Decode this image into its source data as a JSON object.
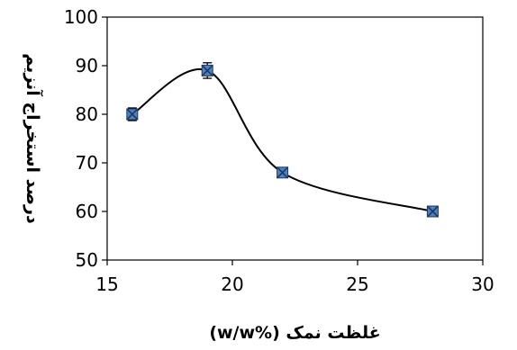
{
  "chart_data": {
    "type": "scatter",
    "title": "",
    "xlabel": "غلظت نمک (%w/w)",
    "ylabel": "درصد استخراج آنزیم",
    "xlim": [
      15,
      30
    ],
    "ylim": [
      50,
      100
    ],
    "x_ticks": [
      15,
      20,
      25,
      30
    ],
    "y_ticks": [
      50,
      60,
      70,
      80,
      90,
      100
    ],
    "grid": false,
    "legend": "none",
    "series": [
      {
        "x": [
          16,
          19,
          22,
          28
        ],
        "y": [
          80,
          89,
          68,
          60
        ],
        "error": [
          1.3,
          1.6,
          0.9,
          0.7
        ],
        "marker_color": "#4f81bd",
        "marker_edge_color": "#1f3864",
        "line": "smooth",
        "line_color": "#000000"
      }
    ]
  }
}
